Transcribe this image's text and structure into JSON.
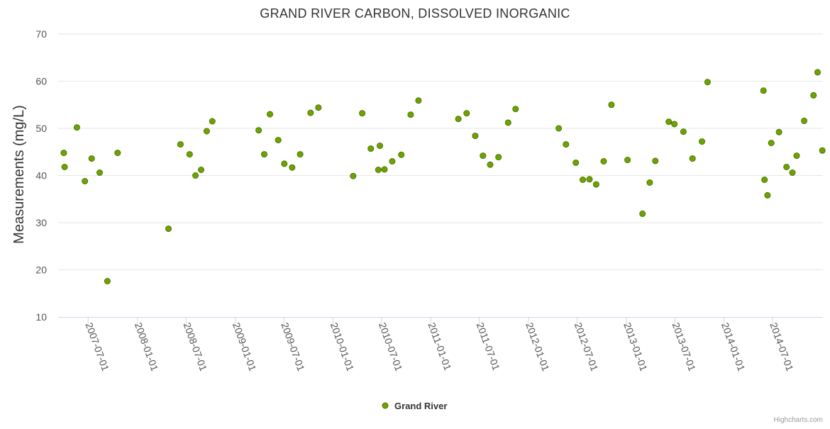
{
  "chart_data": {
    "type": "scatter",
    "title": "GRAND RIVER CARBON, DISSOLVED INORGANIC",
    "xlabel": "",
    "ylabel": "Measurements (mg/L)",
    "ylim": [
      10,
      70
    ],
    "yticks": [
      10,
      20,
      30,
      40,
      50,
      60,
      70
    ],
    "xlim": [
      "2007-03-11",
      "2015-01-05"
    ],
    "xticks": [
      "2007-07-01",
      "2008-01-01",
      "2008-07-01",
      "2009-01-01",
      "2009-07-01",
      "2010-01-01",
      "2010-07-01",
      "2011-01-01",
      "2011-07-01",
      "2012-01-01",
      "2012-07-01",
      "2013-01-01",
      "2013-07-01",
      "2014-01-01",
      "2014-07-01"
    ],
    "grid": true,
    "legend": "bottom-center",
    "series": [
      {
        "name": "Grand River",
        "color": "#6ea400",
        "border_color": "#4a7300",
        "x": [
          "2007-04-01",
          "2007-04-04",
          "2007-05-20",
          "2007-06-19",
          "2007-07-14",
          "2007-08-13",
          "2007-09-11",
          "2007-10-19",
          "2008-04-26",
          "2008-06-10",
          "2008-07-14",
          "2008-08-05",
          "2008-08-26",
          "2008-09-16",
          "2008-10-07",
          "2009-03-29",
          "2009-04-19",
          "2009-05-10",
          "2009-06-10",
          "2009-07-03",
          "2009-08-01",
          "2009-08-31",
          "2009-10-09",
          "2009-11-07",
          "2010-03-17",
          "2010-04-20",
          "2010-05-22",
          "2010-06-19",
          "2010-06-25",
          "2010-07-12",
          "2010-08-10",
          "2010-09-13",
          "2010-10-18",
          "2010-11-16",
          "2011-04-14",
          "2011-05-15",
          "2011-06-16",
          "2011-07-15",
          "2011-08-11",
          "2011-09-11",
          "2011-10-17",
          "2011-11-14",
          "2012-04-23",
          "2012-05-20",
          "2012-06-26",
          "2012-07-22",
          "2012-08-16",
          "2012-09-10",
          "2012-10-08",
          "2012-11-06",
          "2013-01-05",
          "2013-03-02",
          "2013-03-29",
          "2013-04-19",
          "2013-06-08",
          "2013-06-29",
          "2013-08-02",
          "2013-09-05",
          "2013-10-10",
          "2013-10-31",
          "2014-05-28",
          "2014-06-01",
          "2014-06-12",
          "2014-06-26",
          "2014-07-25",
          "2014-08-22",
          "2014-09-13",
          "2014-09-29",
          "2014-10-27",
          "2014-12-01",
          "2014-12-16",
          "2015-01-03"
        ],
        "y": [
          44.8,
          41.8,
          50.2,
          38.8,
          43.6,
          40.6,
          17.6,
          44.8,
          28.7,
          46.6,
          44.5,
          40.0,
          41.2,
          49.4,
          51.5,
          49.6,
          44.5,
          53.0,
          47.5,
          42.5,
          41.7,
          44.5,
          53.3,
          54.4,
          39.9,
          53.2,
          45.7,
          41.2,
          46.3,
          41.3,
          43.0,
          44.4,
          52.9,
          55.9,
          52.0,
          53.2,
          48.4,
          44.2,
          42.3,
          43.9,
          51.2,
          54.1,
          50.0,
          46.6,
          42.7,
          39.1,
          39.2,
          38.1,
          43.0,
          55.0,
          43.3,
          31.9,
          38.5,
          43.1,
          51.4,
          50.9,
          49.3,
          43.6,
          47.2,
          59.8,
          58.0,
          39.1,
          35.8,
          46.9,
          49.2,
          41.8,
          40.6,
          44.2,
          51.6,
          57.0,
          61.9,
          45.3
        ]
      }
    ],
    "credits": "Highcharts.com"
  }
}
